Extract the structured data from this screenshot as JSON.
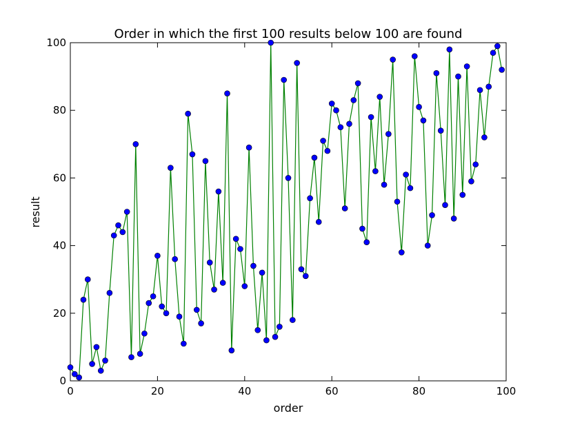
{
  "chart_data": {
    "type": "line",
    "title": "Order in which the first 100 results below 100 are found",
    "xlabel": "order",
    "ylabel": "result",
    "xlim": [
      0,
      100
    ],
    "ylim": [
      0,
      100
    ],
    "xticks": [
      0,
      20,
      40,
      60,
      80,
      100
    ],
    "yticks": [
      0,
      20,
      40,
      60,
      80,
      100
    ],
    "xtick_labels": [
      "0",
      "20",
      "40",
      "60",
      "80",
      "100"
    ],
    "ytick_labels": [
      "0",
      "20",
      "40",
      "60",
      "80",
      "100"
    ],
    "grid": false,
    "colors": {
      "line": "#008000",
      "marker": "#0000ff",
      "marker_edge": "#000000"
    },
    "x": [
      0,
      1,
      2,
      3,
      4,
      5,
      6,
      7,
      8,
      9,
      10,
      11,
      12,
      13,
      14,
      15,
      16,
      17,
      18,
      19,
      20,
      21,
      22,
      23,
      24,
      25,
      26,
      27,
      28,
      29,
      30,
      31,
      32,
      33,
      34,
      35,
      36,
      37,
      38,
      39,
      40,
      41,
      42,
      43,
      44,
      45,
      46,
      47,
      48,
      49,
      50,
      51,
      52,
      53,
      54,
      55,
      56,
      57,
      58,
      59,
      60,
      61,
      62,
      63,
      64,
      65,
      66,
      67,
      68,
      69,
      70,
      71,
      72,
      73,
      74,
      75,
      76,
      77,
      78,
      79,
      80,
      81,
      82,
      83,
      84,
      85,
      86,
      87,
      88,
      89,
      90,
      91,
      92,
      93,
      94,
      95,
      96,
      97,
      98,
      99
    ],
    "y": [
      4,
      2,
      1,
      24,
      30,
      5,
      10,
      3,
      6,
      26,
      43,
      46,
      44,
      50,
      7,
      70,
      8,
      14,
      23,
      25,
      37,
      22,
      20,
      63,
      36,
      19,
      11,
      79,
      67,
      21,
      17,
      65,
      35,
      27,
      56,
      29,
      85,
      9,
      42,
      39,
      28,
      69,
      34,
      15,
      32,
      12,
      100,
      13,
      16,
      89,
      60,
      18,
      94,
      33,
      31,
      54,
      66,
      47,
      71,
      68,
      82,
      80,
      75,
      51,
      76,
      83,
      88,
      45,
      41,
      78,
      62,
      84,
      58,
      73,
      95,
      53,
      38,
      61,
      57,
      96,
      81,
      77,
      40,
      49,
      91,
      74,
      52,
      98,
      48,
      90,
      55,
      93,
      59,
      64,
      86,
      72,
      87,
      97,
      99,
      92
    ]
  }
}
